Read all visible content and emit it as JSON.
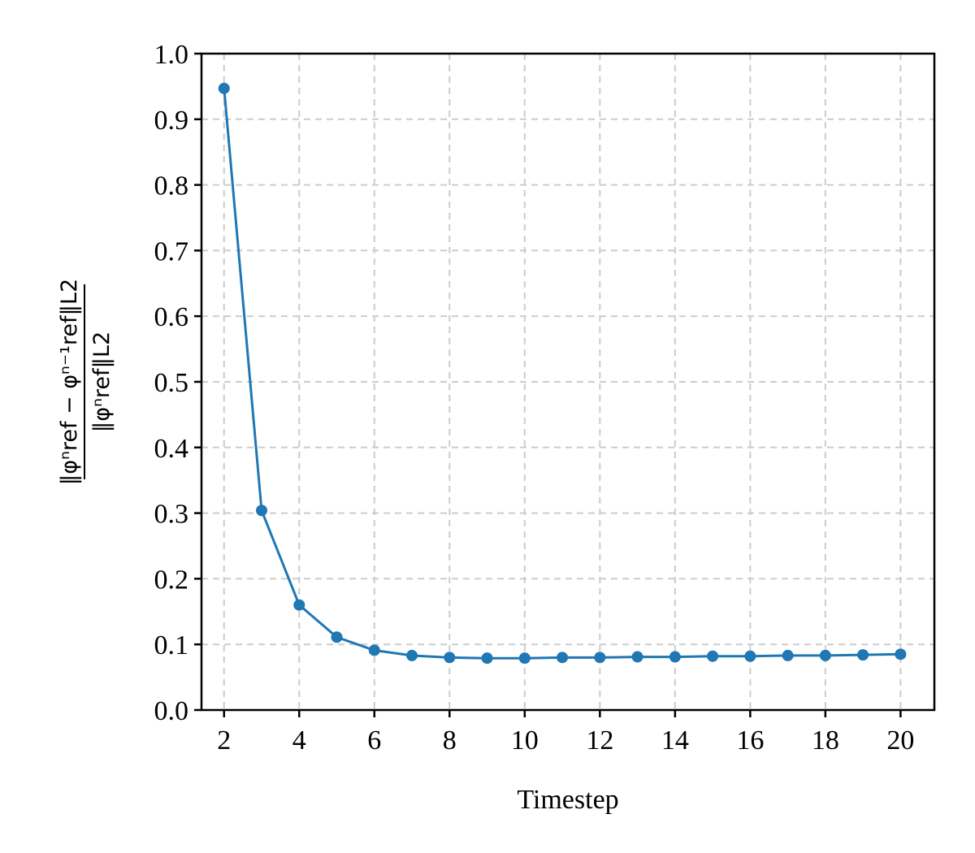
{
  "chart_data": {
    "type": "line",
    "xlabel": "Timestep",
    "ylabel": {
      "numerator": "‖φⁿref − φⁿ⁻¹ref‖L2",
      "denominator": "‖φⁿref‖L2"
    },
    "xlim": [
      1.4,
      20.9
    ],
    "ylim": [
      0.0,
      1.0
    ],
    "xticks": [
      2,
      4,
      6,
      8,
      10,
      12,
      14,
      16,
      18,
      20
    ],
    "xtick_labels": [
      "2",
      "4",
      "6",
      "8",
      "10",
      "12",
      "14",
      "16",
      "18",
      "20"
    ],
    "yticks": [
      0.0,
      0.1,
      0.2,
      0.3,
      0.4,
      0.5,
      0.6,
      0.7,
      0.8,
      0.9,
      1.0
    ],
    "ytick_labels": [
      "0.0",
      "0.1",
      "0.2",
      "0.3",
      "0.4",
      "0.5",
      "0.6",
      "0.7",
      "0.8",
      "0.9",
      "1.0"
    ],
    "grid": true,
    "line_color": "#1f77b4",
    "series": [
      {
        "x": [
          2,
          3,
          4,
          5,
          6,
          7,
          8,
          9,
          10,
          11,
          12,
          13,
          14,
          15,
          16,
          17,
          18,
          19,
          20
        ],
        "values": [
          0.947,
          0.304,
          0.16,
          0.111,
          0.091,
          0.083,
          0.08,
          0.079,
          0.079,
          0.08,
          0.08,
          0.081,
          0.081,
          0.082,
          0.082,
          0.083,
          0.083,
          0.084,
          0.085
        ]
      }
    ]
  }
}
